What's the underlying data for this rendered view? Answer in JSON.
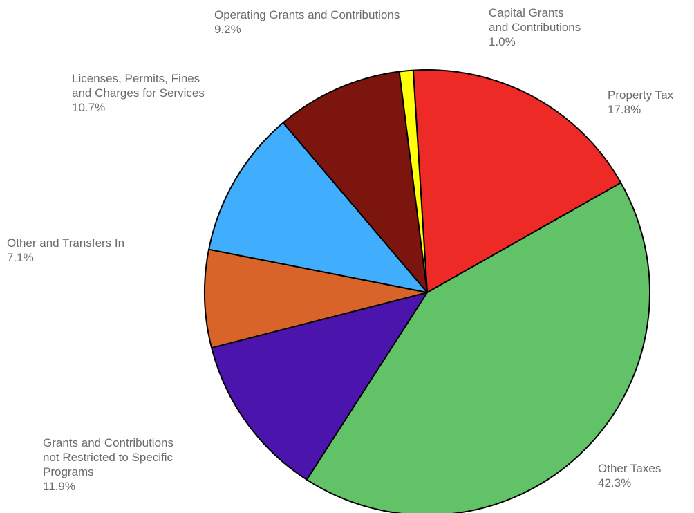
{
  "chart_data": {
    "type": "pie",
    "title": "",
    "start_angle_deg": -3.6,
    "direction": "clockwise",
    "slices": [
      {
        "label_lines": [
          "Property Tax"
        ],
        "percent_label": "17.8%",
        "value": 17.8,
        "color": "#ee2a26"
      },
      {
        "label_lines": [
          "Other Taxes"
        ],
        "percent_label": "42.3%",
        "value": 42.3,
        "color": "#62c267"
      },
      {
        "label_lines": [
          "Grants and Contributions",
          "not Restricted to Specific",
          "Programs"
        ],
        "percent_label": "11.9%",
        "value": 11.9,
        "color": "#4a14ad"
      },
      {
        "label_lines": [
          "Other and Transfers In"
        ],
        "percent_label": "7.1%",
        "value": 7.1,
        "color": "#d8642a"
      },
      {
        "label_lines": [
          "Licenses, Permits, Fines",
          "and Charges for Services"
        ],
        "percent_label": "10.7%",
        "value": 10.7,
        "color": "#40aefc"
      },
      {
        "label_lines": [
          "Operating Grants and Contributions"
        ],
        "percent_label": "9.2%",
        "value": 9.2,
        "color": "#7c150d"
      },
      {
        "label_lines": [
          "Capital Grants",
          "and Contributions"
        ],
        "percent_label": "1.0%",
        "value": 1.0,
        "color": "#ffff0a"
      }
    ],
    "legend": "none"
  }
}
